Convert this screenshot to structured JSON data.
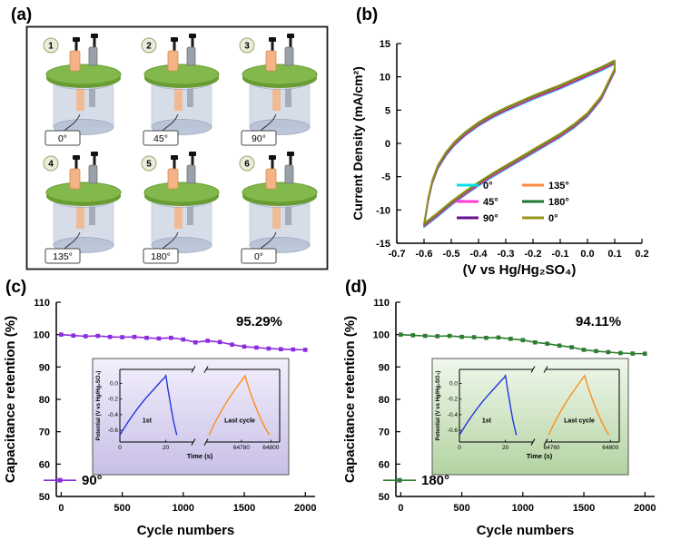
{
  "figure": {
    "panels": {
      "a": {
        "label": "(a)",
        "cells": [
          {
            "number": "1",
            "angle": "0°"
          },
          {
            "number": "2",
            "angle": "45°"
          },
          {
            "number": "3",
            "angle": "90°"
          },
          {
            "number": "4",
            "angle": "135°"
          },
          {
            "number": "5",
            "angle": "180°"
          },
          {
            "number": "6",
            "angle": "0°"
          }
        ],
        "colors": {
          "lid": "#82b84c",
          "lid_dark": "#699c33",
          "electrode_left": "#f4b488",
          "electrode_left_edge": "#d98a4f",
          "electrode_right": "#9aa0aa",
          "electrode_right_edge": "#6b7077",
          "body": "#b6c2d6",
          "body_edge": "#93a2bb",
          "label_border": "#444444"
        }
      },
      "b": {
        "label": "(b)"
      },
      "c": {
        "label": "(c)"
      },
      "d": {
        "label": "(d)"
      }
    }
  },
  "chart_data": [
    {
      "id": "cv",
      "panel": "b",
      "type": "line",
      "title": "",
      "xlabel": "(V vs Hg/Hg₂SO₄)",
      "ylabel": "Current Density (mA/cm²)",
      "xlim": [
        -0.7,
        0.2
      ],
      "ylim": [
        -15,
        15
      ],
      "grid": false,
      "legend_position": "inside-bottom-right",
      "xtick_values": [
        -0.7,
        -0.6,
        -0.5,
        -0.4,
        -0.3,
        -0.2,
        -0.1,
        0.0,
        0.1,
        0.2
      ],
      "xtick_labels": [
        "-0.7",
        "-0.6",
        "-0.5",
        "-0.4",
        "-0.3",
        "-0.2",
        "-0.1",
        "0.0",
        "0.1",
        "0.2"
      ],
      "ytick_values": [
        -15,
        -10,
        -5,
        0,
        5,
        10,
        15
      ],
      "ytick_labels": [
        "-15",
        "-10",
        "-5",
        "0",
        "5",
        "10",
        "15"
      ],
      "series": [
        {
          "name": "0°",
          "color": "#00dfe8"
        },
        {
          "name": "45°",
          "color": "#ff3dd4"
        },
        {
          "name": "90°",
          "color": "#6a0d8a"
        },
        {
          "name": "135°",
          "color": "#ff8b3d"
        },
        {
          "name": "180°",
          "color": "#1d7a2c"
        },
        {
          "name": "0°",
          "color": "#97971a"
        }
      ],
      "loop_points": [
        [
          -0.6,
          -12.3
        ],
        [
          -0.585,
          -8.5
        ],
        [
          -0.57,
          -5.8
        ],
        [
          -0.55,
          -3.6
        ],
        [
          -0.52,
          -1.6
        ],
        [
          -0.49,
          -0.1
        ],
        [
          -0.45,
          1.4
        ],
        [
          -0.4,
          2.9
        ],
        [
          -0.35,
          4.1
        ],
        [
          -0.3,
          5.1
        ],
        [
          -0.25,
          6.0
        ],
        [
          -0.2,
          6.9
        ],
        [
          -0.15,
          7.7
        ],
        [
          -0.1,
          8.5
        ],
        [
          -0.05,
          9.4
        ],
        [
          0.0,
          10.3
        ],
        [
          0.05,
          11.2
        ],
        [
          0.1,
          12.2
        ],
        [
          0.1,
          11.0
        ],
        [
          0.05,
          6.8
        ],
        [
          0.0,
          4.3
        ],
        [
          -0.05,
          2.6
        ],
        [
          -0.1,
          1.2
        ],
        [
          -0.15,
          0.0
        ],
        [
          -0.2,
          -1.2
        ],
        [
          -0.25,
          -2.4
        ],
        [
          -0.3,
          -3.6
        ],
        [
          -0.35,
          -4.8
        ],
        [
          -0.4,
          -6.1
        ],
        [
          -0.45,
          -7.5
        ],
        [
          -0.5,
          -9.0
        ],
        [
          -0.55,
          -10.7
        ]
      ]
    },
    {
      "id": "ret90",
      "panel": "c",
      "type": "line",
      "marker": "square",
      "color": "#8b2be0",
      "annotation": "95.29%",
      "annotation_color": "#9b30ff",
      "legend_label": "90°",
      "xlabel": "Cycle numbers",
      "ylabel": "Capacitance retention (%)",
      "xlim": [
        -40,
        2080
      ],
      "ylim": [
        50,
        110
      ],
      "xtick_values": [
        0,
        500,
        1000,
        1500,
        2000
      ],
      "ytick_values": [
        50,
        60,
        70,
        80,
        90,
        100,
        110
      ],
      "x": [
        0,
        100,
        200,
        300,
        400,
        500,
        600,
        700,
        800,
        900,
        1000,
        1100,
        1200,
        1300,
        1400,
        1500,
        1600,
        1700,
        1800,
        1900,
        2000
      ],
      "y": [
        100,
        99.7,
        99.5,
        99.6,
        99.3,
        99.2,
        99.3,
        99,
        98.8,
        99,
        98.5,
        97.6,
        98.1,
        97.7,
        96.9,
        96.3,
        96,
        95.7,
        95.5,
        95.4,
        95.29
      ],
      "inset": {
        "type": "line",
        "xlabel": "Time (s)",
        "ylabel": "Potential (V vs Hg/Hg₂SO₄)",
        "ylim": [
          -0.75,
          0.18
        ],
        "ytick_values": [
          0.0,
          -0.2,
          -0.4,
          -0.6
        ],
        "ytick_labels": [
          "0.0",
          "-0.2",
          "-0.4",
          "-0.6"
        ],
        "axis_break": true,
        "left_range": [
          0,
          32
        ],
        "right_range": [
          64756,
          64806
        ],
        "left_span": [
          0,
          0.46
        ],
        "right_span": [
          0.54,
          1
        ],
        "left_ticks": [
          {
            "t": 0,
            "label": "0"
          },
          {
            "t": 20,
            "label": "20"
          }
        ],
        "right_ticks": [
          {
            "t": 64780,
            "label": "64780"
          },
          {
            "t": 64800,
            "label": "64800"
          }
        ],
        "background": [
          "#f3effc",
          "#c8bfe7"
        ],
        "series": [
          {
            "name": "1st",
            "color": "#2236e0",
            "points": [
              [
                0,
                -0.66
              ],
              [
                2,
                -0.565
              ],
              [
                4,
                -0.475
              ],
              [
                6,
                -0.39
              ],
              [
                8,
                -0.31
              ],
              [
                10,
                -0.235
              ],
              [
                12,
                -0.165
              ],
              [
                14,
                -0.1
              ],
              [
                16,
                -0.035
              ],
              [
                18,
                0.03
              ],
              [
                19.5,
                0.075
              ],
              [
                20,
                0.1
              ],
              [
                20.3,
                0.05
              ],
              [
                20.8,
                -0.05
              ],
              [
                21.5,
                -0.17
              ],
              [
                22.3,
                -0.31
              ],
              [
                23.2,
                -0.46
              ],
              [
                24.1,
                -0.58
              ],
              [
                24.8,
                -0.66
              ]
            ]
          },
          {
            "name": "Last cycle",
            "color": "#ff8c1a",
            "points": [
              [
                64758,
                -0.66
              ],
              [
                64761,
                -0.54
              ],
              [
                64764,
                -0.43
              ],
              [
                64767,
                -0.33
              ],
              [
                64770,
                -0.235
              ],
              [
                64773,
                -0.15
              ],
              [
                64776,
                -0.07
              ],
              [
                64779,
                0.01
              ],
              [
                64781.5,
                0.075
              ],
              [
                64782.5,
                0.1
              ],
              [
                64783.5,
                0.03
              ],
              [
                64785.5,
                -0.09
              ],
              [
                64788,
                -0.22
              ],
              [
                64791,
                -0.36
              ],
              [
                64794,
                -0.49
              ],
              [
                64797,
                -0.6
              ],
              [
                64799,
                -0.66
              ]
            ]
          }
        ]
      }
    },
    {
      "id": "ret180",
      "panel": "d",
      "type": "line",
      "marker": "square",
      "color": "#2e7d32",
      "annotation": "94.11%",
      "annotation_color": "#3cb043",
      "legend_label": "180°",
      "xlabel": "Cycle numbers",
      "ylabel": "Capacitance retention (%)",
      "xlim": [
        -40,
        2080
      ],
      "ylim": [
        50,
        110
      ],
      "xtick_values": [
        0,
        500,
        1000,
        1500,
        2000
      ],
      "ytick_values": [
        50,
        60,
        70,
        80,
        90,
        100,
        110
      ],
      "x": [
        0,
        100,
        200,
        300,
        400,
        500,
        600,
        700,
        800,
        900,
        1000,
        1100,
        1200,
        1300,
        1400,
        1500,
        1600,
        1700,
        1800,
        1900,
        2000
      ],
      "y": [
        100,
        99.8,
        99.6,
        99.5,
        99.6,
        99.3,
        99.2,
        99,
        99.1,
        98.7,
        98.3,
        97.6,
        97.2,
        96.6,
        96.1,
        95.3,
        94.9,
        94.6,
        94.3,
        94.15,
        94.11
      ],
      "inset": {
        "type": "line",
        "xlabel": "Time (s)",
        "ylabel": "Potential (V vs Hg/Hg₂SO₄)",
        "ylim": [
          -0.75,
          0.18
        ],
        "ytick_values": [
          0.0,
          -0.2,
          -0.4,
          -0.6
        ],
        "ytick_labels": [
          "0.0",
          "-0.2",
          "-0.4",
          "-0.6"
        ],
        "axis_break": true,
        "left_range": [
          0,
          32
        ],
        "right_range": [
          64756,
          64806
        ],
        "left_span": [
          0,
          0.46
        ],
        "right_span": [
          0.54,
          1
        ],
        "left_ticks": [
          {
            "t": 0,
            "label": "0"
          },
          {
            "t": 20,
            "label": "20"
          }
        ],
        "right_ticks": [
          {
            "t": 64760,
            "label": "64760"
          },
          {
            "t": 64800,
            "label": "64800"
          }
        ],
        "background": [
          "#f0f8ec",
          "#b3d3a2"
        ],
        "series": [
          {
            "name": "1st",
            "color": "#2236e0",
            "points": [
              [
                0,
                -0.66
              ],
              [
                2,
                -0.565
              ],
              [
                4,
                -0.475
              ],
              [
                6,
                -0.39
              ],
              [
                8,
                -0.31
              ],
              [
                10,
                -0.235
              ],
              [
                12,
                -0.165
              ],
              [
                14,
                -0.1
              ],
              [
                16,
                -0.035
              ],
              [
                18,
                0.03
              ],
              [
                19.5,
                0.075
              ],
              [
                20,
                0.1
              ],
              [
                20.3,
                0.05
              ],
              [
                20.8,
                -0.05
              ],
              [
                21.5,
                -0.17
              ],
              [
                22.3,
                -0.31
              ],
              [
                23.2,
                -0.46
              ],
              [
                24.1,
                -0.58
              ],
              [
                24.8,
                -0.66
              ]
            ]
          },
          {
            "name": "Last cycle",
            "color": "#ff8c1a",
            "points": [
              [
                64758,
                -0.66
              ],
              [
                64761,
                -0.54
              ],
              [
                64764,
                -0.43
              ],
              [
                64767,
                -0.33
              ],
              [
                64770,
                -0.235
              ],
              [
                64773,
                -0.15
              ],
              [
                64776,
                -0.07
              ],
              [
                64779,
                0.01
              ],
              [
                64781.5,
                0.075
              ],
              [
                64782.5,
                0.1
              ],
              [
                64783.5,
                0.03
              ],
              [
                64785.5,
                -0.09
              ],
              [
                64788,
                -0.22
              ],
              [
                64791,
                -0.36
              ],
              [
                64794,
                -0.49
              ],
              [
                64797,
                -0.6
              ],
              [
                64799,
                -0.66
              ]
            ]
          }
        ]
      }
    }
  ]
}
